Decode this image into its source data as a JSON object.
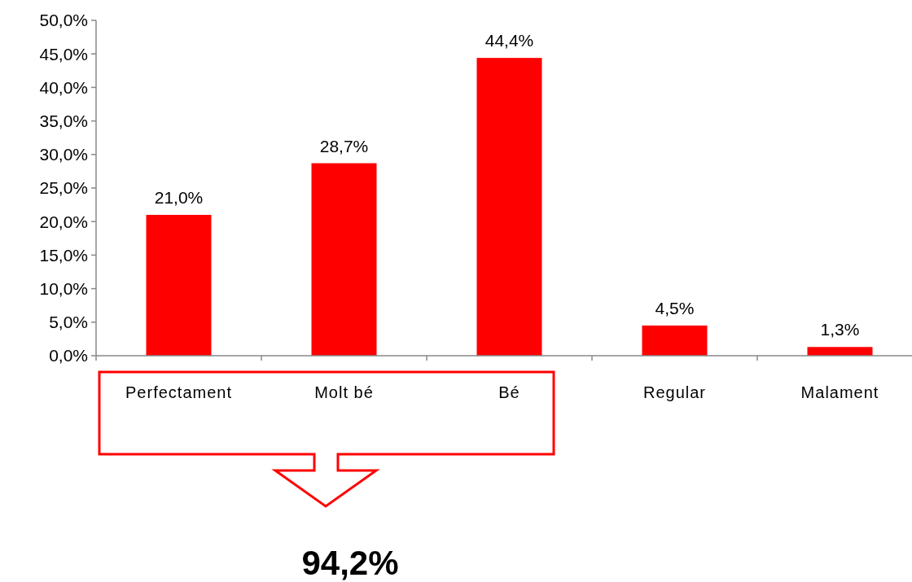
{
  "chart_data": {
    "type": "bar",
    "categories": [
      "Perfectament",
      "Molt bé",
      "Bé",
      "Regular",
      "Malament"
    ],
    "values": [
      21.0,
      28.7,
      44.4,
      4.5,
      1.3
    ],
    "value_labels": [
      "21,0%",
      "28,7%",
      "44,4%",
      "4,5%",
      "1,3%"
    ],
    "color": "#ff0000",
    "ylim": [
      0,
      50
    ],
    "yticks": [
      {
        "value": 0,
        "label": "0,0%"
      },
      {
        "value": 5,
        "label": "5,0%"
      },
      {
        "value": 10,
        "label": "10,0%"
      },
      {
        "value": 15,
        "label": "15,0%"
      },
      {
        "value": 20,
        "label": "20,0%"
      },
      {
        "value": 25,
        "label": "25,0%"
      },
      {
        "value": 30,
        "label": "30,0%"
      },
      {
        "value": 35,
        "label": "35,0%"
      },
      {
        "value": 40,
        "label": "40,0%"
      },
      {
        "value": 45,
        "label": "45,0%"
      },
      {
        "value": 50,
        "label": "50,0%"
      }
    ],
    "annotations": [
      "94,2%"
    ],
    "grid": false
  }
}
